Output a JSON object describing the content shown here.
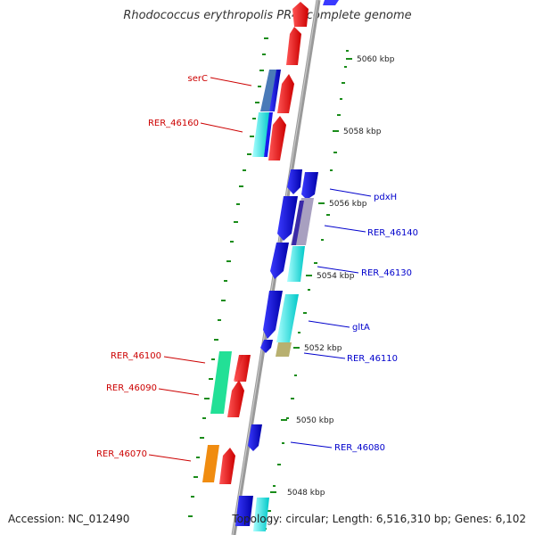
{
  "title": "Rhodococcus erythropolis PR4, complete genome",
  "footer": {
    "accession": "Accession: NC_012490",
    "topology": "Topology: circular; Length: 6,516,310 bp; Genes: 6,102"
  },
  "ticks": [
    "5060 kbp",
    "5058 kbp",
    "5056 kbp",
    "5054 kbp",
    "5052 kbp",
    "5050 kbp",
    "5048 kbp"
  ],
  "genes_left": [
    "serC",
    "RER_46160",
    "RER_46100",
    "RER_46090",
    "RER_46070"
  ],
  "genes_right": [
    "pdxH",
    "RER_46140",
    "RER_46130",
    "gltA",
    "RER_46110",
    "RER_46080"
  ],
  "colors": {
    "forward_label": "#cc0000",
    "reverse_label": "#0000cc",
    "backbone": "#9a9a9a",
    "gc_dots": "#1a8c1a",
    "red": "#ee1111",
    "blue": "#1a1aee",
    "cyan": "#11dddd",
    "green": "#22e096",
    "orange": "#f08c10",
    "olive": "#b8b070",
    "steel": "#4a7ab8"
  }
}
